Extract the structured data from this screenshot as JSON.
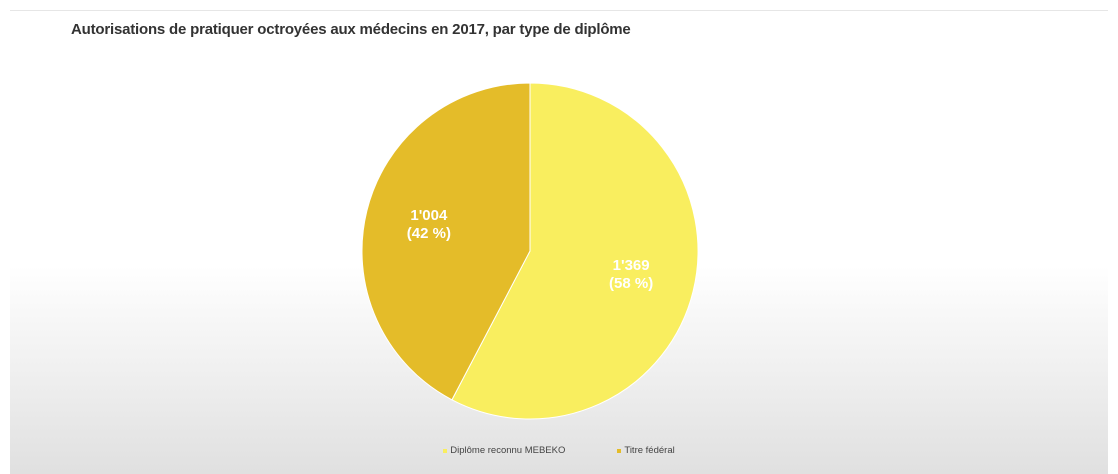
{
  "chart_data": {
    "type": "pie",
    "title": "Autorisations de pratiquer octroyées aux médecins en 2017, par type de diplôme",
    "series": [
      {
        "name": "Diplôme reconnu MEBEKO",
        "value": 1369,
        "percent": 58,
        "label_line1": "1'369",
        "label_line2": "(58 %)",
        "color": "#f9ee5f"
      },
      {
        "name": "Titre fédéral",
        "value": 1004,
        "percent": 42,
        "label_line1": "1'004",
        "label_line2": "(42 %)",
        "color": "#e4bc29"
      }
    ],
    "legend_position": "bottom",
    "label_color": "#ffffff"
  }
}
